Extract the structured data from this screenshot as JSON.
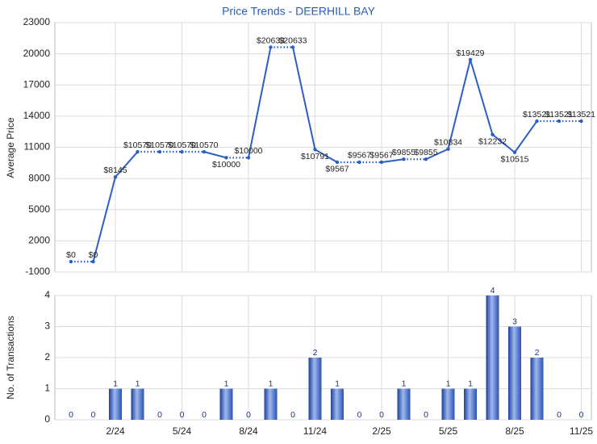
{
  "chart_data": [
    {
      "type": "line",
      "title": "Price Trends - DEERHILL BAY",
      "y_label": "Average Price",
      "values": [
        0,
        0,
        8145,
        10570,
        10570,
        10570,
        10570,
        10000,
        10000,
        20633,
        20633,
        10791,
        9567,
        9567,
        9567,
        9855,
        9855,
        10834,
        19429,
        12232,
        10515,
        13521,
        13521,
        13521
      ],
      "value_labels": [
        "$0",
        "$0",
        "$8145",
        "$10570",
        "$10570",
        "$10570",
        "$10570",
        "$10000",
        "$10000",
        "$20633",
        "$20633",
        "$10791",
        "$9567",
        "$9567",
        "$9567",
        "$9855",
        "$9855",
        "$10834",
        "$19429",
        "$12232",
        "$10515",
        "$13521",
        "$13521",
        "$13521"
      ],
      "color": "#2b5fc4",
      "ylim": [
        -1000,
        23000
      ],
      "yticks": [
        -1000,
        2000,
        5000,
        8000,
        11000,
        14000,
        17000,
        20000,
        23000
      ],
      "grid": true
    },
    {
      "type": "bar",
      "y_label": "No. of Transactions",
      "categories": [
        null,
        null,
        "2/24",
        null,
        null,
        "5/24",
        null,
        null,
        "8/24",
        null,
        null,
        "11/24",
        null,
        null,
        "2/25",
        null,
        null,
        "5/25",
        null,
        null,
        "8/25",
        null,
        null,
        "11/25"
      ],
      "values": [
        0,
        0,
        1,
        1,
        0,
        0,
        0,
        1,
        0,
        1,
        0,
        2,
        1,
        0,
        0,
        1,
        0,
        1,
        1,
        4,
        3,
        2,
        0,
        0
      ],
      "color": "#3a66c8",
      "ylim": [
        0,
        4
      ],
      "yticks": [
        0,
        1,
        2,
        3,
        4
      ],
      "grid": true
    }
  ]
}
